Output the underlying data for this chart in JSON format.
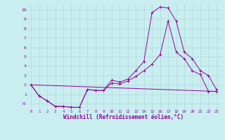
{
  "background_color": "#c8eef0",
  "grid_color": "#b0d8da",
  "line_color": "#990099",
  "xlabel": "Windchill (Refroidissement éolien,°C)",
  "xlabel_fontsize": 5.5,
  "ylim": [
    -0.6,
    10.6
  ],
  "xlim": [
    -0.5,
    23.5
  ],
  "line1_x": [
    0,
    1,
    2,
    3,
    4,
    5,
    6,
    7,
    8,
    9,
    10,
    11,
    12,
    13,
    14,
    15,
    16,
    17,
    18,
    19,
    20,
    21,
    22,
    23
  ],
  "line1_y": [
    2.0,
    0.8,
    0.3,
    -0.3,
    -0.3,
    -0.4,
    -0.4,
    1.5,
    1.4,
    1.4,
    2.5,
    2.3,
    2.6,
    3.5,
    4.5,
    9.7,
    10.3,
    10.2,
    8.8,
    5.5,
    4.8,
    3.5,
    3.0,
    1.5
  ],
  "line2_x": [
    0,
    1,
    2,
    3,
    4,
    5,
    6,
    7,
    8,
    9,
    10,
    11,
    12,
    13,
    14,
    15,
    16,
    17,
    18,
    19,
    20,
    21,
    22,
    23
  ],
  "line2_y": [
    2.0,
    0.8,
    0.3,
    -0.3,
    -0.3,
    -0.4,
    -0.4,
    1.5,
    1.4,
    1.4,
    2.2,
    2.1,
    2.4,
    2.9,
    3.5,
    4.2,
    5.2,
    8.8,
    5.5,
    4.8,
    3.5,
    3.1,
    1.3,
    1.3
  ],
  "line3_x": [
    0,
    23
  ],
  "line3_y": [
    2.0,
    1.3
  ],
  "yticks": [
    0,
    1,
    2,
    3,
    4,
    5,
    6,
    7,
    8,
    9,
    10
  ],
  "ytick_labels": [
    "-0",
    "1",
    "2",
    "3",
    "4",
    "5",
    "6",
    "7",
    "8",
    "9",
    "10"
  ]
}
